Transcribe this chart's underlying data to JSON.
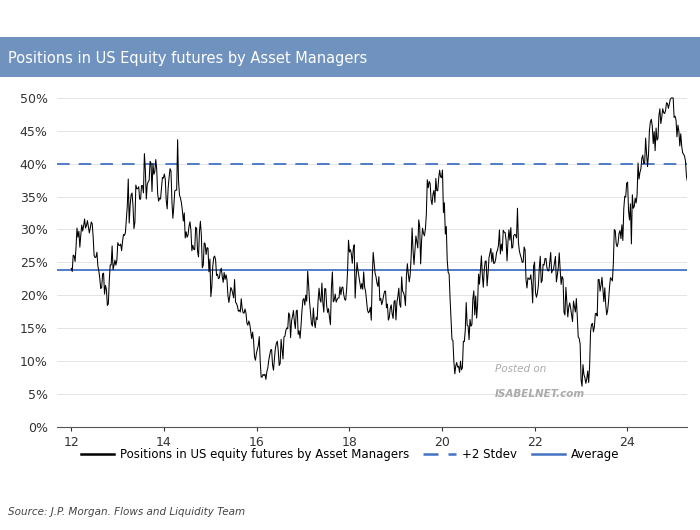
{
  "title": "Positions in US Equity futures by Asset Managers",
  "title_bg_color": "#7092be",
  "title_text_color": "#ffffff",
  "ylim": [
    0,
    0.52
  ],
  "xlim": [
    11.7,
    25.3
  ],
  "yticks": [
    0.0,
    0.05,
    0.1,
    0.15,
    0.2,
    0.25,
    0.3,
    0.35,
    0.4,
    0.45,
    0.5
  ],
  "ytick_labels": [
    "0%",
    "5%",
    "10%",
    "15%",
    "20%",
    "25%",
    "30%",
    "35%",
    "40%",
    "45%",
    "50%"
  ],
  "xticks": [
    12,
    14,
    16,
    18,
    20,
    22,
    24
  ],
  "average_line": 0.238,
  "stdev2_line": 0.4,
  "average_color": "#4472c4",
  "stdev2_color": "#4472c4",
  "line_color": "#000000",
  "bg_color": "#ffffff",
  "source_text": "Source: J.P. Morgan. Flows and Liquidity Team",
  "legend_labels": [
    "Positions in US equity futures by Asset Managers",
    "+2 Stdev",
    "Average"
  ],
  "watermark_line1": "Posted on",
  "watermark_line2": "ISABELNET.com"
}
